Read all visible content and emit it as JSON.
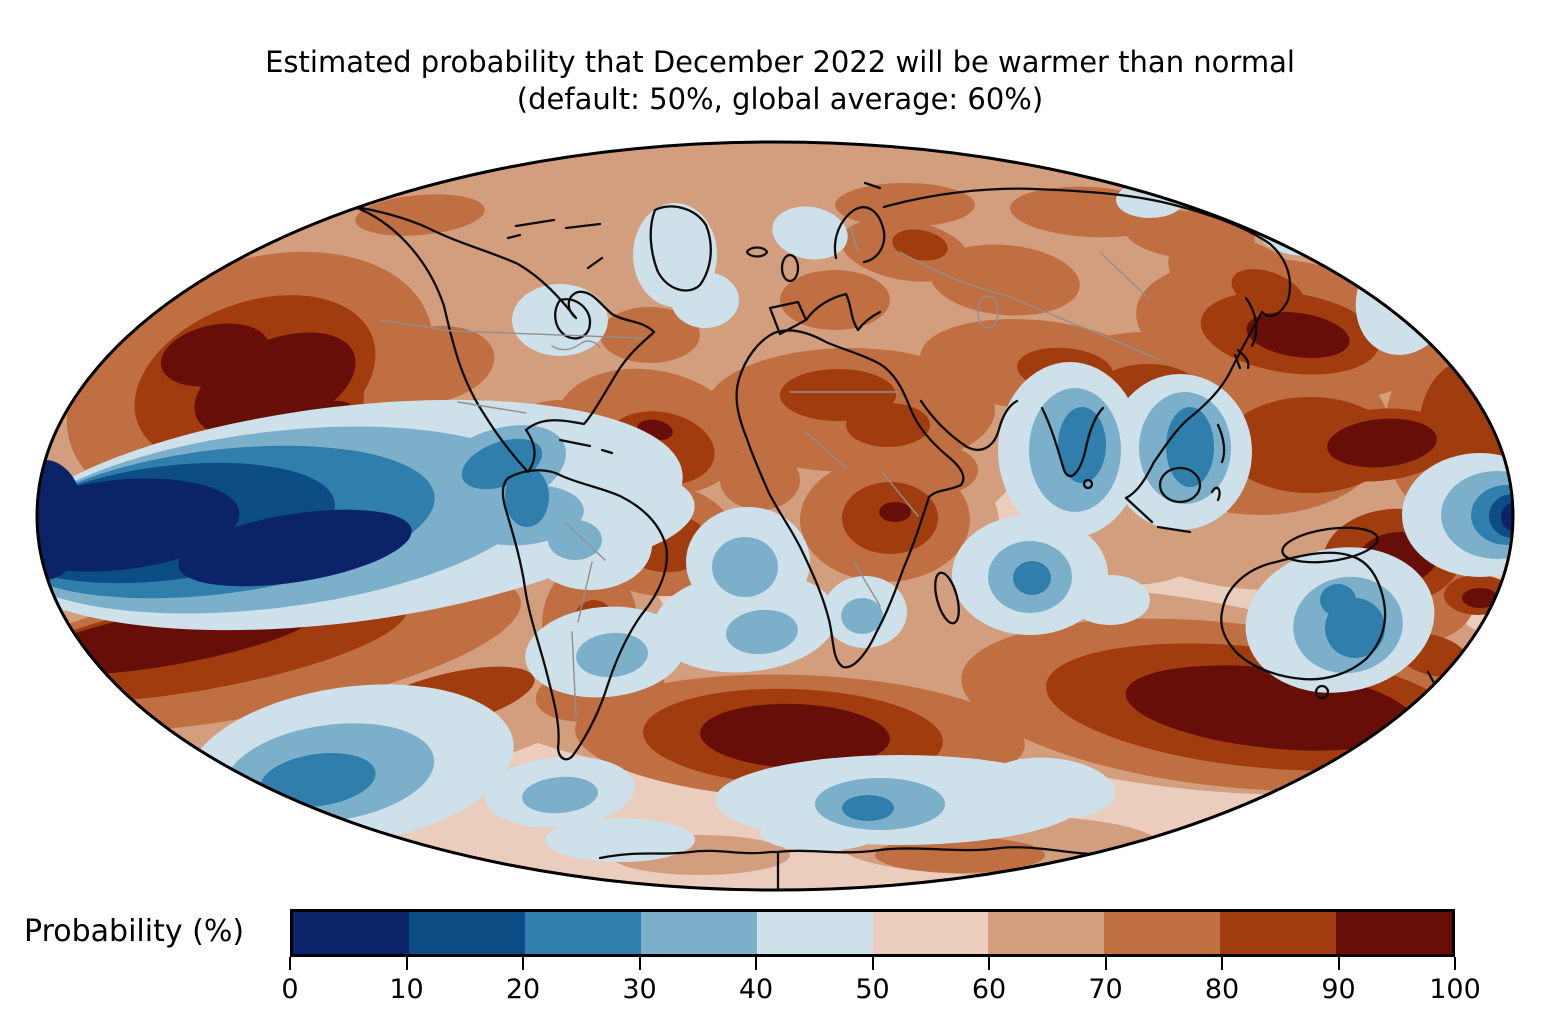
{
  "title": {
    "line1": "Estimated probability that December 2022 will be warmer than normal",
    "line2": "(default: 50%, global average: 60%)"
  },
  "colorbar": {
    "label": "Probability (%)",
    "ticks": [
      "0",
      "10",
      "20",
      "30",
      "40",
      "50",
      "60",
      "70",
      "80",
      "90",
      "100"
    ],
    "segments": [
      {
        "range": "0-10",
        "color": "#0a2369"
      },
      {
        "range": "10-20",
        "color": "#0b4d84"
      },
      {
        "range": "20-30",
        "color": "#2f7eab"
      },
      {
        "range": "30-40",
        "color": "#7cb0ca"
      },
      {
        "range": "40-50",
        "color": "#cee0e9"
      },
      {
        "range": "50-60",
        "color": "#ebcdbe"
      },
      {
        "range": "60-70",
        "color": "#d39e7d"
      },
      {
        "range": "70-80",
        "color": "#c06f42"
      },
      {
        "range": "80-90",
        "color": "#a03c0e"
      },
      {
        "range": "90-100",
        "color": "#670e08"
      }
    ]
  },
  "map": {
    "type": "global filled-contour probability map",
    "projection": "Mollweide-style oval projection",
    "overlay": [
      "black coastlines",
      "gray country borders"
    ]
  },
  "chart_data": {
    "type": "heatmap",
    "variant": "filled-contour world map on an oval (Mollweide) projection",
    "title": "Estimated probability that December 2022 will be warmer than normal",
    "subtitle": "(default: 50%, global average: 60%)",
    "colorbar_label": "Probability (%)",
    "value_range": [
      0,
      100
    ],
    "ticks": [
      0,
      10,
      20,
      30,
      40,
      50,
      60,
      70,
      80,
      90,
      100
    ],
    "bin_colors": [
      "#0a2369",
      "#0b4d84",
      "#2f7eab",
      "#7cb0ca",
      "#cee0e9",
      "#ebcdbe",
      "#d39e7d",
      "#c06f42",
      "#a03c0e",
      "#670e08"
    ],
    "default_probability_percent": 50,
    "global_average_percent": 60,
    "notable_regions": [
      {
        "region": "Equatorial central/eastern Pacific cold tongue (La Nina)",
        "value_percent": "0-10"
      },
      {
        "region": "Northeast Pacific / Gulf of Alaska",
        "value_percent": "90-100"
      },
      {
        "region": "Northwest Pacific east of Japan",
        "value_percent": "90-100"
      },
      {
        "region": "Western tropical Pacific near New Guinea",
        "value_percent": "90-100"
      },
      {
        "region": "South Atlantic around 50S",
        "value_percent": "90-100"
      },
      {
        "region": "Southern Ocean south of Australia and New Zealand",
        "value_percent": "90-100"
      },
      {
        "region": "Subtropical South Pacific band",
        "value_percent": "80-100"
      },
      {
        "region": "Most land areas of North America, Eurasia and Africa",
        "value_percent": "60-90"
      },
      {
        "region": "India, Bay of Bengal and Indochina",
        "value_percent": "20-50"
      },
      {
        "region": "Interior eastern Australia",
        "value_percent": "20-40"
      },
      {
        "region": "South-central Pacific and scattered southern-ocean patches",
        "value_percent": "20-50"
      },
      {
        "region": "Caribbean / northern South America",
        "value_percent": "20-40"
      }
    ]
  }
}
